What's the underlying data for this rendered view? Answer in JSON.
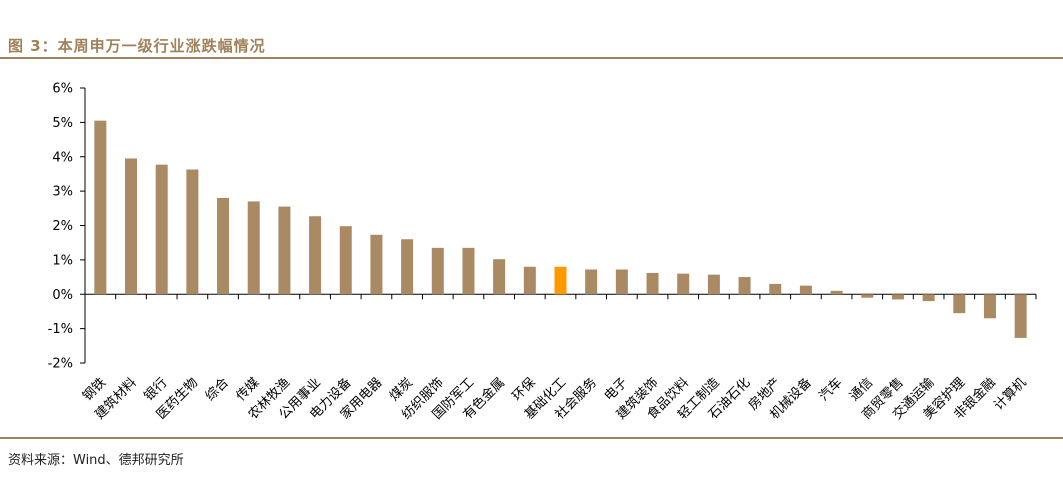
{
  "title": "图 3：本周申万一级行业涨跌幅情况",
  "source": "资料来源：Wind、德邦研究所",
  "chart_data": {
    "type": "bar",
    "title": "",
    "xlabel": "",
    "ylabel": "",
    "ylim": [
      -2,
      6
    ],
    "yticks": [
      -2,
      -1,
      0,
      1,
      2,
      3,
      4,
      5,
      6
    ],
    "y_tick_format": "percent",
    "grid": false,
    "bar_color": "#a98a62",
    "highlight_color": "#ff9900",
    "highlight_category": "基础化工",
    "categories": [
      "钢铁",
      "建筑材料",
      "银行",
      "医药生物",
      "综合",
      "传媒",
      "农林牧渔",
      "公用事业",
      "电力设备",
      "家用电器",
      "煤炭",
      "纺织服饰",
      "国防军工",
      "有色金属",
      "环保",
      "基础化工",
      "社会服务",
      "电子",
      "建筑装饰",
      "食品饮料",
      "轻工制造",
      "石油石化",
      "房地产",
      "机械设备",
      "汽车",
      "通信",
      "商贸零售",
      "交通运输",
      "美容护理",
      "非银金融",
      "计算机"
    ],
    "values": [
      5.05,
      3.95,
      3.77,
      3.63,
      2.8,
      2.7,
      2.55,
      2.27,
      1.98,
      1.73,
      1.6,
      1.35,
      1.35,
      1.02,
      0.8,
      0.8,
      0.72,
      0.72,
      0.62,
      0.6,
      0.57,
      0.5,
      0.3,
      0.25,
      0.1,
      -0.1,
      -0.15,
      -0.2,
      -0.55,
      -0.7,
      -1.27
    ]
  }
}
